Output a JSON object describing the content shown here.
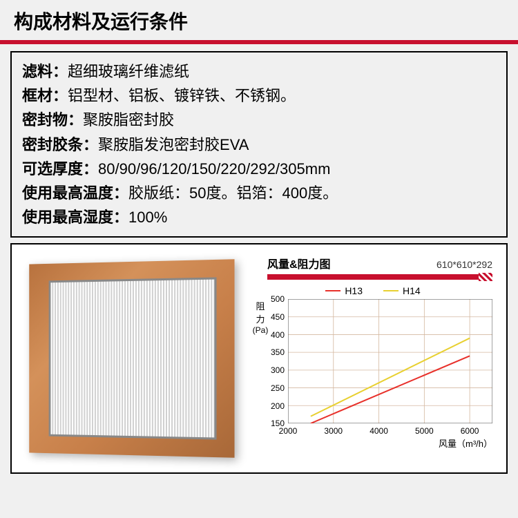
{
  "header": {
    "title": "构成材料及运行条件"
  },
  "specs": [
    {
      "label": "滤料：",
      "value": "超细玻璃纤维滤纸"
    },
    {
      "label": "框材：",
      "value": "铝型材、铝板、镀锌铁、不锈钢。"
    },
    {
      "label": "密封物：",
      "value": "聚胺脂密封胶"
    },
    {
      "label": "密封胶条：",
      "value": "聚胺脂发泡密封胶EVA"
    },
    {
      "label": "可选厚度：",
      "value": "80/90/96/120/150/220/292/305mm"
    },
    {
      "label": "使用最高温度：",
      "value": "胶版纸：50度。铝箔：400度。"
    },
    {
      "label": "使用最高湿度：",
      "value": "100%"
    }
  ],
  "chart": {
    "title": "风量&阻力图",
    "dimensions": "610*610*292",
    "type": "line",
    "xlabel": "风量（m³/h）",
    "ylabel_line1": "阻",
    "ylabel_line2": "力",
    "ylabel_unit": "(Pa)",
    "xlim": [
      2000,
      6500
    ],
    "ylim": [
      150,
      500
    ],
    "xticks": [
      2000,
      3000,
      4000,
      5000,
      6000
    ],
    "yticks": [
      150,
      200,
      250,
      300,
      350,
      400,
      450,
      500
    ],
    "grid_color": "#d4b8a0",
    "axis_color": "#666",
    "background_color": "#ffffff",
    "series": [
      {
        "name": "H13",
        "color": "#e8302a",
        "line_width": 2,
        "points": [
          [
            2500,
            150
          ],
          [
            6000,
            340
          ]
        ]
      },
      {
        "name": "H14",
        "color": "#e8d030",
        "line_width": 2,
        "points": [
          [
            2500,
            170
          ],
          [
            6000,
            390
          ]
        ]
      }
    ]
  }
}
